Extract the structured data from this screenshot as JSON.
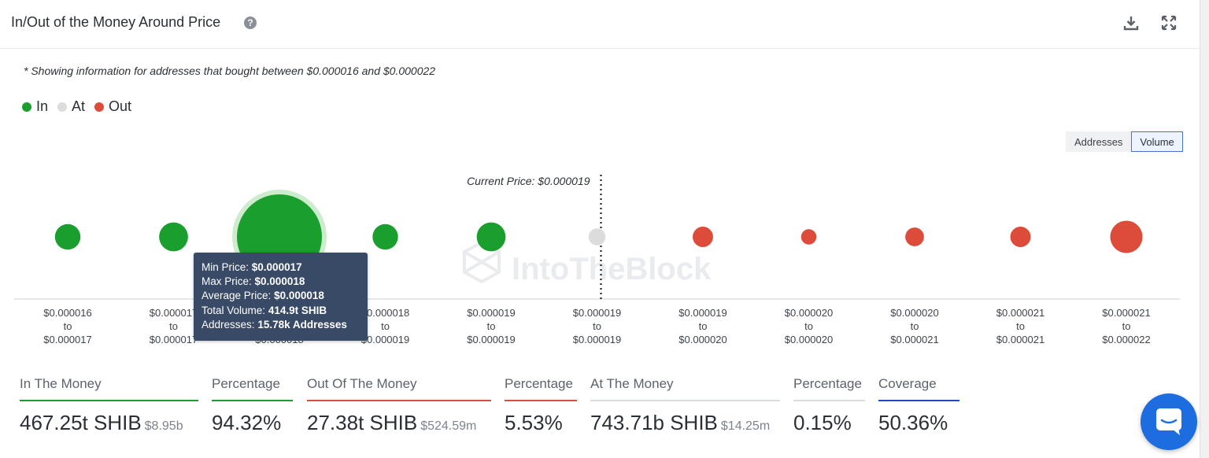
{
  "header": {
    "title": "In/Out of the Money Around Price",
    "help_icon": "question-circle-icon",
    "download_icon": "download-icon",
    "expand_icon": "expand-icon"
  },
  "note": "* Showing information for addresses that bought between $0.000016 and $0.000022",
  "legend": [
    {
      "label": "In",
      "color": "#1a9e2e"
    },
    {
      "label": "At",
      "color": "#dcdcdc"
    },
    {
      "label": "Out",
      "color": "#dd4b3a"
    }
  ],
  "toggle": {
    "options": [
      "Addresses",
      "Volume"
    ],
    "selected": "Volume"
  },
  "chart_data": {
    "type": "scatter",
    "current_price_label": "Current Price: $0.000019",
    "watermark": "IntoTheBlock",
    "bins": [
      {
        "from": "$0.000016",
        "to": "$0.000017",
        "status": "in",
        "size": 0.3
      },
      {
        "from": "$0.000017",
        "to": "$0.000017",
        "status": "in",
        "size": 0.34
      },
      {
        "from": "$0.000017",
        "to": "$0.000018",
        "status": "in",
        "size": 1.0,
        "highlighted": true
      },
      {
        "from": "$0.000018",
        "to": "$0.000019",
        "status": "in",
        "size": 0.3
      },
      {
        "from": "$0.000019",
        "to": "$0.000019",
        "status": "in",
        "size": 0.34
      },
      {
        "from": "$0.000019",
        "to": "$0.000019",
        "status": "at",
        "size": 0.2
      },
      {
        "from": "$0.000019",
        "to": "$0.000020",
        "status": "out",
        "size": 0.24
      },
      {
        "from": "$0.000020",
        "to": "$0.000020",
        "status": "out",
        "size": 0.18
      },
      {
        "from": "$0.000020",
        "to": "$0.000021",
        "status": "out",
        "size": 0.22
      },
      {
        "from": "$0.000021",
        "to": "$0.000021",
        "status": "out",
        "size": 0.24
      },
      {
        "from": "$0.000021",
        "to": "$0.000022",
        "status": "out",
        "size": 0.38
      }
    ],
    "colors": {
      "in": "#1a9e2e",
      "at": "#dcdcdc",
      "out": "#dd4b3a"
    }
  },
  "tooltip": {
    "min_price_label": "Min Price:",
    "min_price": "$0.000017",
    "max_price_label": "Max Price:",
    "max_price": "$0.000018",
    "avg_price_label": "Average Price:",
    "avg_price": "$0.000018",
    "total_volume_label": "Total Volume:",
    "total_volume": "414.9t SHIB",
    "addresses_label": "Addresses:",
    "addresses": "15.78k Addresses"
  },
  "stats": [
    {
      "label": "In The Money",
      "value": "467.25t SHIB",
      "sub": "$8.95b",
      "underline": "#1a9e2e"
    },
    {
      "label": "Percentage",
      "value": "94.32%",
      "sub": "",
      "underline": "#1a9e2e"
    },
    {
      "label": "Out Of The Money",
      "value": "27.38t SHIB",
      "sub": "$524.59m",
      "underline": "#dd4b3a"
    },
    {
      "label": "Percentage",
      "value": "5.53%",
      "sub": "",
      "underline": "#dd4b3a"
    },
    {
      "label": "At The Money",
      "value": "743.71b SHIB",
      "sub": "$14.25m",
      "underline": "#d9dce1"
    },
    {
      "label": "Percentage",
      "value": "0.15%",
      "sub": "",
      "underline": "#d9dce1"
    },
    {
      "label": "Coverage",
      "value": "50.36%",
      "sub": "",
      "underline": "#2346c8"
    }
  ],
  "chat": {
    "icon": "chat-bubble-icon"
  }
}
